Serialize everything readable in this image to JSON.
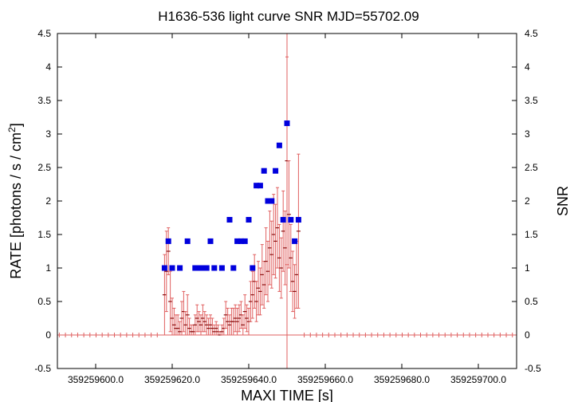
{
  "chart_data": {
    "type": "scatter",
    "title": "H1636-536 light curve  SNR MJD=55702.09",
    "xlabel": "MAXI TIME [s]",
    "ylabel": "RATE [photons / s / cm",
    "ylabel_sup": "2",
    "ylabel_close": "]",
    "y2label": "SNR",
    "xlim": [
      359259590,
      359259710
    ],
    "ylim": [
      -0.5,
      4.5
    ],
    "y2lim": [
      -0.5,
      4.5
    ],
    "xticks": [
      359259600,
      359259620,
      359259640,
      359259660,
      359259680,
      359259700
    ],
    "xtick_labels": [
      "359259600.0",
      "359259620.0",
      "359259640.0",
      "359259660.0",
      "359259680.0",
      "359259700.0"
    ],
    "yticks": [
      -0.5,
      0,
      0.5,
      1,
      1.5,
      2,
      2.5,
      3,
      3.5,
      4,
      4.5
    ],
    "ytick_labels": [
      "-0.5",
      "0",
      "0.5",
      "1",
      "1.5",
      "2",
      "2.5",
      "3",
      "3.5",
      "4",
      "4.5"
    ],
    "y2tick_labels": [
      "-0.5",
      "0",
      "0.5",
      "1",
      "1.5",
      "2",
      "2.5",
      "3",
      "3.5",
      "4",
      "4.5"
    ],
    "marker_time": 359259650,
    "colors": {
      "rate": "#e06060",
      "snr": "#0000dd",
      "marker": "#e06060"
    },
    "series": [
      {
        "kind": "rate",
        "x": [
          359259618.0,
          359259618.5,
          359259619.0,
          359259619.5,
          359259620.0,
          359259620.5,
          359259621.0,
          359259621.5,
          359259622.0,
          359259622.5,
          359259623.0,
          359259623.5,
          359259624.0,
          359259624.5,
          359259625.0,
          359259625.5,
          359259626.0,
          359259626.5,
          359259627.0,
          359259627.5,
          359259628.0,
          359259628.5,
          359259629.0,
          359259629.5,
          359259630.0,
          359259630.5,
          359259631.0,
          359259631.5,
          359259632.0,
          359259632.5,
          359259633.0,
          359259633.5,
          359259634.0,
          359259634.5,
          359259635.0,
          359259635.5,
          359259636.0,
          359259636.5,
          359259637.0,
          359259637.5,
          359259638.0,
          359259638.5,
          359259639.0,
          359259639.5,
          359259640.0,
          359259640.5,
          359259641.0,
          359259641.5,
          359259642.0,
          359259642.5,
          359259643.0,
          359259643.5,
          359259644.0,
          359259644.5,
          359259645.0,
          359259645.5,
          359259646.0,
          359259646.5,
          359259647.0,
          359259647.5,
          359259648.0,
          359259648.5,
          359259649.0,
          359259649.5,
          359259650.0,
          359259650.5,
          359259651.0,
          359259651.5,
          359259652.0,
          359259652.5,
          359259653.0
        ],
        "y": [
          0.6,
          0.95,
          1.25,
          0.5,
          0.25,
          0.15,
          0.1,
          0.1,
          0.05,
          0.25,
          0.35,
          0.15,
          0.3,
          0.1,
          0.05,
          0.05,
          0.15,
          0.25,
          0.2,
          0.15,
          0.25,
          0.2,
          0.15,
          0.1,
          0.15,
          0.1,
          0.05,
          0.1,
          0.05,
          0.0,
          0.05,
          0.1,
          0.3,
          0.2,
          0.15,
          0.2,
          0.2,
          0.25,
          0.2,
          0.25,
          0.3,
          0.15,
          0.35,
          0.25,
          0.2,
          0.5,
          0.6,
          0.8,
          0.5,
          0.7,
          0.65,
          0.9,
          0.75,
          1.1,
          0.95,
          1.3,
          1.2,
          1.5,
          1.4,
          1.6,
          1.15,
          1.0,
          1.55,
          1.3,
          2.6,
          1.8,
          1.15,
          0.8,
          0.65,
          0.9,
          1.55
        ],
        "err": [
          0.6,
          0.6,
          0.35,
          0.45,
          0.3,
          0.25,
          0.2,
          0.2,
          0.15,
          0.25,
          0.3,
          0.2,
          0.3,
          0.15,
          0.1,
          0.1,
          0.15,
          0.2,
          0.15,
          0.15,
          0.2,
          0.15,
          0.15,
          0.15,
          0.15,
          0.15,
          0.1,
          0.1,
          0.1,
          0.05,
          0.1,
          0.15,
          0.2,
          0.2,
          0.15,
          0.2,
          0.2,
          0.2,
          0.2,
          0.2,
          0.2,
          0.15,
          0.25,
          0.2,
          0.2,
          0.3,
          0.35,
          0.4,
          0.3,
          0.4,
          0.35,
          0.45,
          0.35,
          0.5,
          0.45,
          0.55,
          0.5,
          0.6,
          0.55,
          0.6,
          0.5,
          0.45,
          0.6,
          0.55,
          1.55,
          0.8,
          0.5,
          0.45,
          0.4,
          0.5,
          1.15
        ]
      },
      {
        "kind": "snr",
        "x": [
          359259618.0,
          359259619.0,
          359259620.0,
          359259622.0,
          359259624.0,
          359259626.0,
          359259627.0,
          359259628.0,
          359259629.0,
          359259630.0,
          359259631.0,
          359259633.0,
          359259635.0,
          359259636.0,
          359259637.0,
          359259638.0,
          359259639.0,
          359259640.0,
          359259641.0,
          359259642.0,
          359259643.0,
          359259644.0,
          359259645.0,
          359259646.0,
          359259647.0,
          359259648.0,
          359259649.0,
          359259650.0,
          359259651.0,
          359259652.0,
          359259653.0
        ],
        "y": [
          1.0,
          1.4,
          1.0,
          1.0,
          1.4,
          1.0,
          1.0,
          1.0,
          1.0,
          1.4,
          1.0,
          1.0,
          1.72,
          1.0,
          1.4,
          1.4,
          1.4,
          1.72,
          1.0,
          2.23,
          2.23,
          2.45,
          2.0,
          2.0,
          2.45,
          2.83,
          1.72,
          3.16,
          1.72,
          1.4,
          1.72
        ]
      }
    ]
  }
}
